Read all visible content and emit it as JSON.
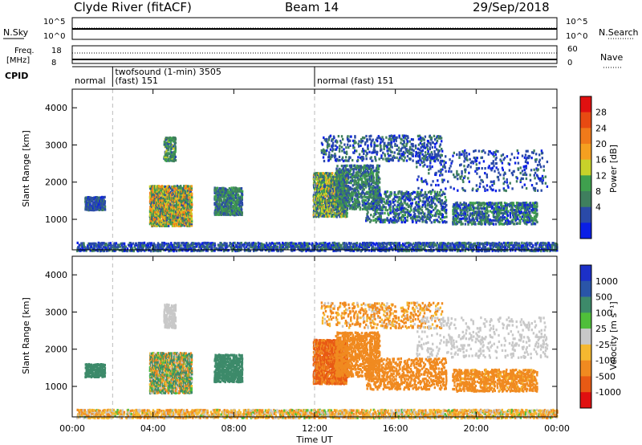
{
  "header": {
    "title": "Clyde River (fitACF)",
    "beam": "Beam 14",
    "date": "29/Sep/2018"
  },
  "strips": {
    "nsky_label": "N.Sky",
    "nsky_ticks": [
      "10^5",
      "10^0"
    ],
    "nsearch_label": "N.Search",
    "nsearch_ticks": [
      "10^5",
      "10^0"
    ],
    "freq_label_line1": "Freq.",
    "freq_label_line2": "[MHz]",
    "freq_ticks": [
      "18",
      "8"
    ],
    "nave_label": "Nave",
    "nave_ticks": [
      "60",
      "0"
    ],
    "cpid_label": "CPID",
    "cpid_segments": [
      {
        "start": 0.0,
        "end": 2.0,
        "text1": "normal",
        "text2": ""
      },
      {
        "start": 2.0,
        "end": 12.0,
        "text1": "twofsound (1-min) 3505",
        "text2": "(fast) 151"
      },
      {
        "start": 12.0,
        "end": 24.0,
        "text1": "normal (fast) 151",
        "text2": ""
      }
    ]
  },
  "x_axis": {
    "title": "Time UT",
    "ticks": [
      "00:00",
      "04:00",
      "08:00",
      "12:00",
      "16:00",
      "20:00",
      "00:00"
    ]
  },
  "colorbars": {
    "power": {
      "label": "Power [dB]",
      "ticks": [
        "28",
        "24",
        "20",
        "16",
        "12",
        "8",
        "4"
      ],
      "colors": [
        "#0a1fe6",
        "#2a4aa8",
        "#3f7f5e",
        "#3fa04e",
        "#c8d22a",
        "#f5a020",
        "#f07a1a",
        "#e84a12",
        "#e01010"
      ]
    },
    "velocity": {
      "label": "Velocity [m s⁻¹]",
      "ticks": [
        "1000",
        "500",
        "100",
        "25",
        "-25",
        "-100",
        "-500",
        "-1000"
      ],
      "colors": [
        "#1c30c8",
        "#2a55a8",
        "#3d8a6a",
        "#4fbf3a",
        "#c8c8c8",
        "#f5b830",
        "#f08a20",
        "#e85a14",
        "#e01010"
      ]
    }
  },
  "chart_data": [
    {
      "type": "heatmap",
      "title": "",
      "xlabel": "",
      "ylabel": "Slant Range [km]",
      "xlim": [
        0,
        24
      ],
      "ylim": [
        180,
        4500
      ],
      "yticks": [
        "4000",
        "3000",
        "2000",
        "1000"
      ],
      "colorbar": "Power [dB]",
      "blobs": [
        {
          "t0": 0.2,
          "t1": 24.0,
          "r0": 180,
          "r1": 420,
          "dens": 0.55,
          "vmin": 4,
          "vmax": 13
        },
        {
          "t0": 0.6,
          "t1": 1.6,
          "r0": 1280,
          "r1": 1650,
          "dens": 0.8,
          "vmin": 5,
          "vmax": 12
        },
        {
          "t0": 3.8,
          "t1": 5.9,
          "r0": 850,
          "r1": 1950,
          "dens": 0.8,
          "vmin": 8,
          "vmax": 30
        },
        {
          "t0": 4.5,
          "t1": 5.1,
          "r0": 2600,
          "r1": 3250,
          "dens": 0.55,
          "vmin": 8,
          "vmax": 20
        },
        {
          "t0": 7.0,
          "t1": 8.4,
          "r0": 1150,
          "r1": 1900,
          "dens": 0.65,
          "vmin": 6,
          "vmax": 18
        },
        {
          "t0": 11.9,
          "t1": 13.6,
          "r0": 1100,
          "r1": 2300,
          "dens": 0.75,
          "vmin": 6,
          "vmax": 24
        },
        {
          "t0": 13.0,
          "t1": 15.2,
          "r0": 1300,
          "r1": 2500,
          "dens": 0.45,
          "vmin": 6,
          "vmax": 18
        },
        {
          "t0": 12.3,
          "t1": 18.3,
          "r0": 2600,
          "r1": 3300,
          "dens": 0.18,
          "vmin": 4,
          "vmax": 14
        },
        {
          "t0": 14.5,
          "t1": 18.5,
          "r0": 950,
          "r1": 1800,
          "dens": 0.3,
          "vmin": 4,
          "vmax": 16
        },
        {
          "t0": 18.8,
          "t1": 23.0,
          "r0": 900,
          "r1": 1500,
          "dens": 0.45,
          "vmin": 4,
          "vmax": 18
        },
        {
          "t0": 17.0,
          "t1": 23.5,
          "r0": 1800,
          "r1": 2900,
          "dens": 0.1,
          "vmin": 4,
          "vmax": 12
        }
      ]
    },
    {
      "type": "heatmap",
      "title": "",
      "xlabel": "Time UT",
      "ylabel": "Slant Range [km]",
      "xlim": [
        0,
        24
      ],
      "ylim": [
        180,
        4500
      ],
      "yticks": [
        "4000",
        "3000",
        "2000",
        "1000"
      ],
      "colorbar": "Velocity [m s-1]",
      "blobs": [
        {
          "t0": 0.2,
          "t1": 24.0,
          "r0": 180,
          "r1": 420,
          "dens": 0.6,
          "vmin": -150,
          "vmax": 40
        },
        {
          "t0": 0.6,
          "t1": 1.6,
          "r0": 1280,
          "r1": 1650,
          "dens": 0.8,
          "vmin": 100,
          "vmax": 300
        },
        {
          "t0": 3.8,
          "t1": 5.9,
          "r0": 850,
          "r1": 1950,
          "dens": 0.8,
          "vmin": -200,
          "vmax": 300
        },
        {
          "t0": 4.5,
          "t1": 5.1,
          "r0": 2600,
          "r1": 3250,
          "dens": 0.55,
          "vmin": -20,
          "vmax": 20
        },
        {
          "t0": 7.0,
          "t1": 8.4,
          "r0": 1150,
          "r1": 1900,
          "dens": 0.65,
          "vmin": 100,
          "vmax": 300
        },
        {
          "t0": 11.9,
          "t1": 13.6,
          "r0": 1100,
          "r1": 2300,
          "dens": 0.75,
          "vmin": -900,
          "vmax": -300
        },
        {
          "t0": 13.0,
          "t1": 15.2,
          "r0": 1300,
          "r1": 2500,
          "dens": 0.45,
          "vmin": -500,
          "vmax": -100
        },
        {
          "t0": 12.3,
          "t1": 18.3,
          "r0": 2600,
          "r1": 3300,
          "dens": 0.18,
          "vmin": -300,
          "vmax": 20
        },
        {
          "t0": 14.5,
          "t1": 18.5,
          "r0": 950,
          "r1": 1800,
          "dens": 0.3,
          "vmin": -400,
          "vmax": -100
        },
        {
          "t0": 18.8,
          "t1": 23.0,
          "r0": 900,
          "r1": 1500,
          "dens": 0.45,
          "vmin": -300,
          "vmax": -80
        },
        {
          "t0": 17.0,
          "t1": 23.5,
          "r0": 1800,
          "r1": 2900,
          "dens": 0.1,
          "vmin": -20,
          "vmax": 20
        }
      ]
    }
  ]
}
